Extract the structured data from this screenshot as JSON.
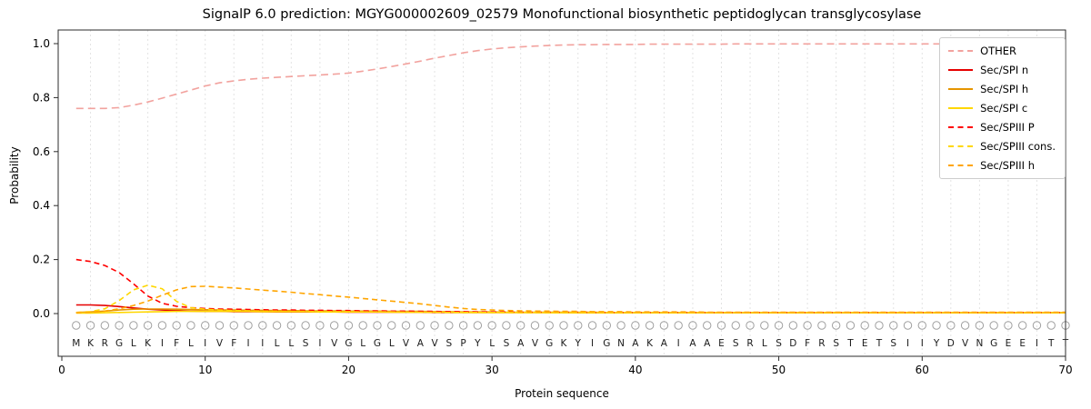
{
  "chart_data": {
    "type": "line",
    "title": "SignalP 6.0 prediction: MGYG000002609_02579 Monofunctional biosynthetic peptidoglycan transglycosylase",
    "xlabel": "Protein sequence",
    "ylabel": "Probability",
    "xlim": [
      0,
      70
    ],
    "ylim": [
      0,
      1.05
    ],
    "x_ticks": [
      0,
      10,
      20,
      30,
      40,
      50,
      60,
      70
    ],
    "y_ticks": [
      "0.0",
      "0.2",
      "0.4",
      "0.6",
      "0.8",
      "1.0"
    ],
    "grid": "vertical-dashed",
    "legend_position": "upper-right",
    "marker_symbol": "O",
    "sequence": "MKRGLKIFLIVFIILLSIVGLGLVAVSPYLSAVGKYIGNAKAIAAESRLSDFRSTETSIIYDVNGEEITT",
    "colors": {
      "grid": "#e3e3e3",
      "spine": "#2b2b2b",
      "marker": "#a0a0a0",
      "letters": "#1a1a1a"
    },
    "series": [
      {
        "name": "OTHER",
        "color": "#f2a29e",
        "dash": true,
        "values": [
          0.76,
          0.76,
          0.76,
          0.763,
          0.772,
          0.784,
          0.798,
          0.813,
          0.828,
          0.843,
          0.855,
          0.862,
          0.868,
          0.872,
          0.875,
          0.878,
          0.881,
          0.884,
          0.887,
          0.891,
          0.898,
          0.906,
          0.915,
          0.925,
          0.935,
          0.946,
          0.956,
          0.966,
          0.974,
          0.98,
          0.985,
          0.988,
          0.991,
          0.993,
          0.995,
          0.996,
          0.996,
          0.997,
          0.997,
          0.997,
          0.998,
          0.998,
          0.998,
          0.998,
          0.998,
          0.998,
          0.999,
          0.999,
          0.999,
          0.999,
          0.999,
          0.999,
          0.999,
          0.999,
          0.999,
          0.999,
          0.999,
          0.999,
          0.999,
          0.999,
          0.999,
          0.999,
          0.999,
          0.999,
          0.999,
          0.999,
          1.0,
          1.0,
          1.0,
          1.0
        ]
      },
      {
        "name": "Sec/SPI n",
        "color": "#e60000",
        "dash": false,
        "values": [
          0.032,
          0.032,
          0.03,
          0.026,
          0.021,
          0.016,
          0.013,
          0.011,
          0.009,
          0.008,
          0.008,
          0.007,
          0.007,
          0.007,
          0.006,
          0.006,
          0.006,
          0.006,
          0.006,
          0.005,
          0.005,
          0.005,
          0.005,
          0.005,
          0.005,
          0.004,
          0.004,
          0.004,
          0.004,
          0.004,
          0.004,
          0.004,
          0.004,
          0.004,
          0.004,
          0.003,
          0.003,
          0.003,
          0.003,
          0.003,
          0.003,
          0.003,
          0.003,
          0.003,
          0.003,
          0.003,
          0.003,
          0.003,
          0.003,
          0.003,
          0.003,
          0.003,
          0.003,
          0.003,
          0.003,
          0.003,
          0.003,
          0.003,
          0.003,
          0.003,
          0.003,
          0.003,
          0.003,
          0.003,
          0.003,
          0.003,
          0.003,
          0.003,
          0.003,
          0.003
        ]
      },
      {
        "name": "Sec/SPI h",
        "color": "#e69500",
        "dash": false,
        "values": [
          0.004,
          0.006,
          0.009,
          0.013,
          0.016,
          0.017,
          0.017,
          0.016,
          0.015,
          0.014,
          0.013,
          0.013,
          0.012,
          0.012,
          0.011,
          0.011,
          0.01,
          0.01,
          0.01,
          0.009,
          0.009,
          0.009,
          0.008,
          0.008,
          0.008,
          0.007,
          0.007,
          0.006,
          0.006,
          0.006,
          0.005,
          0.005,
          0.005,
          0.005,
          0.005,
          0.005,
          0.005,
          0.004,
          0.004,
          0.004,
          0.004,
          0.004,
          0.004,
          0.004,
          0.004,
          0.004,
          0.004,
          0.004,
          0.004,
          0.004,
          0.004,
          0.004,
          0.004,
          0.004,
          0.004,
          0.004,
          0.004,
          0.004,
          0.004,
          0.004,
          0.004,
          0.004,
          0.004,
          0.004,
          0.004,
          0.004,
          0.004,
          0.004,
          0.004,
          0.004
        ]
      },
      {
        "name": "Sec/SPI c",
        "color": "#ffd700",
        "dash": false,
        "values": [
          0.002,
          0.002,
          0.003,
          0.004,
          0.005,
          0.006,
          0.007,
          0.008,
          0.008,
          0.008,
          0.008,
          0.008,
          0.008,
          0.007,
          0.007,
          0.007,
          0.007,
          0.006,
          0.006,
          0.006,
          0.006,
          0.006,
          0.005,
          0.005,
          0.005,
          0.005,
          0.005,
          0.004,
          0.004,
          0.004,
          0.004,
          0.004,
          0.004,
          0.003,
          0.003,
          0.003,
          0.003,
          0.003,
          0.003,
          0.003,
          0.003,
          0.003,
          0.003,
          0.003,
          0.003,
          0.003,
          0.003,
          0.003,
          0.003,
          0.003,
          0.003,
          0.003,
          0.003,
          0.003,
          0.003,
          0.003,
          0.003,
          0.003,
          0.003,
          0.003,
          0.003,
          0.003,
          0.003,
          0.003,
          0.003,
          0.003,
          0.003,
          0.003,
          0.003,
          0.003
        ]
      },
      {
        "name": "Sec/SPIII P",
        "color": "#ff0000",
        "dash": true,
        "values": [
          0.2,
          0.193,
          0.178,
          0.152,
          0.11,
          0.065,
          0.038,
          0.027,
          0.022,
          0.019,
          0.017,
          0.016,
          0.015,
          0.014,
          0.013,
          0.013,
          0.012,
          0.012,
          0.011,
          0.011,
          0.01,
          0.01,
          0.009,
          0.009,
          0.008,
          0.008,
          0.007,
          0.007,
          0.006,
          0.006,
          0.006,
          0.005,
          0.005,
          0.005,
          0.005,
          0.005,
          0.004,
          0.004,
          0.004,
          0.004,
          0.004,
          0.004,
          0.004,
          0.004,
          0.004,
          0.004,
          0.004,
          0.004,
          0.004,
          0.004,
          0.004,
          0.004,
          0.004,
          0.004,
          0.004,
          0.004,
          0.004,
          0.004,
          0.004,
          0.004,
          0.004,
          0.004,
          0.004,
          0.004,
          0.004,
          0.004,
          0.004,
          0.004,
          0.004,
          0.004
        ]
      },
      {
        "name": "Sec/SPIII cons.",
        "color": "#ffd700",
        "dash": true,
        "values": [
          0.004,
          0.007,
          0.018,
          0.048,
          0.088,
          0.105,
          0.092,
          0.045,
          0.022,
          0.016,
          0.013,
          0.011,
          0.01,
          0.009,
          0.009,
          0.008,
          0.008,
          0.007,
          0.007,
          0.007,
          0.006,
          0.006,
          0.006,
          0.005,
          0.005,
          0.005,
          0.004,
          0.004,
          0.004,
          0.004,
          0.004,
          0.003,
          0.003,
          0.003,
          0.003,
          0.003,
          0.003,
          0.003,
          0.003,
          0.003,
          0.003,
          0.003,
          0.003,
          0.003,
          0.003,
          0.003,
          0.003,
          0.003,
          0.003,
          0.003,
          0.003,
          0.003,
          0.003,
          0.003,
          0.003,
          0.003,
          0.003,
          0.003,
          0.003,
          0.003,
          0.003,
          0.003,
          0.003,
          0.003,
          0.003,
          0.003,
          0.003,
          0.003,
          0.003,
          0.003
        ]
      },
      {
        "name": "Sec/SPIII h",
        "color": "#ffa500",
        "dash": true,
        "values": [
          0.003,
          0.005,
          0.009,
          0.018,
          0.03,
          0.046,
          0.068,
          0.088,
          0.1,
          0.101,
          0.098,
          0.095,
          0.091,
          0.087,
          0.083,
          0.079,
          0.074,
          0.07,
          0.065,
          0.061,
          0.056,
          0.051,
          0.046,
          0.041,
          0.036,
          0.03,
          0.024,
          0.019,
          0.015,
          0.013,
          0.011,
          0.01,
          0.009,
          0.009,
          0.008,
          0.008,
          0.007,
          0.007,
          0.007,
          0.006,
          0.006,
          0.006,
          0.006,
          0.006,
          0.005,
          0.005,
          0.005,
          0.005,
          0.005,
          0.005,
          0.005,
          0.005,
          0.005,
          0.005,
          0.005,
          0.005,
          0.005,
          0.005,
          0.005,
          0.005,
          0.005,
          0.005,
          0.005,
          0.005,
          0.005,
          0.005,
          0.005,
          0.005,
          0.005,
          0.005
        ]
      }
    ]
  }
}
